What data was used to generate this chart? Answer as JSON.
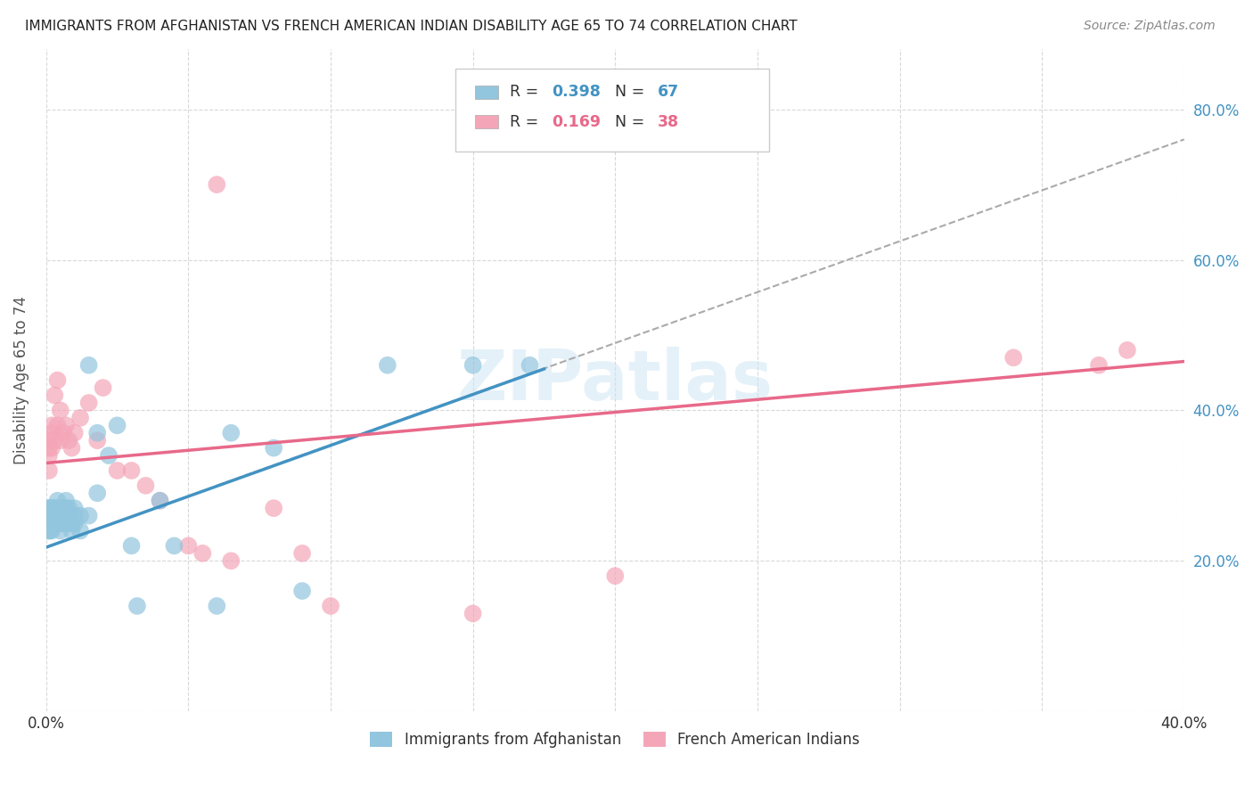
{
  "title": "IMMIGRANTS FROM AFGHANISTAN VS FRENCH AMERICAN INDIAN DISABILITY AGE 65 TO 74 CORRELATION CHART",
  "source": "Source: ZipAtlas.com",
  "ylabel": "Disability Age 65 to 74",
  "xlim": [
    0.0,
    0.4
  ],
  "ylim": [
    0.0,
    0.88
  ],
  "xticks": [
    0.0,
    0.05,
    0.1,
    0.15,
    0.2,
    0.25,
    0.3,
    0.35,
    0.4
  ],
  "ytick_positions": [
    0.0,
    0.2,
    0.4,
    0.6,
    0.8
  ],
  "ytick_labels": [
    "",
    "20.0%",
    "40.0%",
    "60.0%",
    "80.0%"
  ],
  "watermark": "ZIPatlas",
  "color_blue": "#92c5de",
  "color_pink": "#f4a6b8",
  "color_blue_line": "#4393c3",
  "color_pink_line": "#e8698a",
  "color_blue_text": "#4393c3",
  "color_pink_text": "#e8698a",
  "label1": "Immigrants from Afghanistan",
  "label2": "French American Indians",
  "blue_scatter_x": [
    0.001,
    0.001,
    0.001,
    0.001,
    0.001,
    0.001,
    0.001,
    0.001,
    0.001,
    0.001,
    0.002,
    0.002,
    0.002,
    0.002,
    0.002,
    0.002,
    0.002,
    0.002,
    0.003,
    0.003,
    0.003,
    0.003,
    0.003,
    0.003,
    0.004,
    0.004,
    0.004,
    0.004,
    0.004,
    0.005,
    0.005,
    0.005,
    0.005,
    0.006,
    0.006,
    0.006,
    0.007,
    0.007,
    0.007,
    0.008,
    0.008,
    0.008,
    0.009,
    0.009,
    0.01,
    0.01,
    0.01,
    0.012,
    0.012,
    0.015,
    0.015,
    0.018,
    0.018,
    0.022,
    0.025,
    0.03,
    0.032,
    0.04,
    0.045,
    0.06,
    0.065,
    0.08,
    0.09,
    0.12,
    0.15,
    0.17
  ],
  "blue_scatter_y": [
    0.26,
    0.27,
    0.25,
    0.24,
    0.26,
    0.27,
    0.25,
    0.26,
    0.24,
    0.25,
    0.25,
    0.26,
    0.27,
    0.25,
    0.26,
    0.24,
    0.26,
    0.27,
    0.25,
    0.26,
    0.27,
    0.25,
    0.26,
    0.27,
    0.25,
    0.26,
    0.27,
    0.28,
    0.25,
    0.24,
    0.25,
    0.26,
    0.27,
    0.25,
    0.26,
    0.27,
    0.26,
    0.27,
    0.28,
    0.25,
    0.26,
    0.27,
    0.24,
    0.25,
    0.25,
    0.26,
    0.27,
    0.24,
    0.26,
    0.26,
    0.46,
    0.29,
    0.37,
    0.34,
    0.38,
    0.22,
    0.14,
    0.28,
    0.22,
    0.14,
    0.37,
    0.35,
    0.16,
    0.46,
    0.46,
    0.46
  ],
  "pink_scatter_x": [
    0.001,
    0.001,
    0.001,
    0.001,
    0.002,
    0.002,
    0.002,
    0.003,
    0.003,
    0.004,
    0.004,
    0.005,
    0.005,
    0.006,
    0.007,
    0.008,
    0.009,
    0.01,
    0.012,
    0.015,
    0.018,
    0.02,
    0.025,
    0.03,
    0.035,
    0.04,
    0.05,
    0.055,
    0.06,
    0.065,
    0.08,
    0.09,
    0.1,
    0.15,
    0.2,
    0.34,
    0.37,
    0.38
  ],
  "pink_scatter_y": [
    0.34,
    0.35,
    0.36,
    0.32,
    0.35,
    0.37,
    0.38,
    0.42,
    0.36,
    0.44,
    0.38,
    0.4,
    0.36,
    0.37,
    0.38,
    0.36,
    0.35,
    0.37,
    0.39,
    0.41,
    0.36,
    0.43,
    0.32,
    0.32,
    0.3,
    0.28,
    0.22,
    0.21,
    0.7,
    0.2,
    0.27,
    0.21,
    0.14,
    0.13,
    0.18,
    0.47,
    0.46,
    0.48
  ],
  "blue_line_x": [
    0.0,
    0.175
  ],
  "blue_line_y": [
    0.218,
    0.455
  ],
  "pink_line_x": [
    0.0,
    0.4
  ],
  "pink_line_y": [
    0.33,
    0.465
  ],
  "dash_line_x": [
    0.06,
    0.4
  ],
  "dash_line_y": [
    0.3,
    0.76
  ],
  "background_color": "#ffffff",
  "grid_color": "#d8d8d8"
}
